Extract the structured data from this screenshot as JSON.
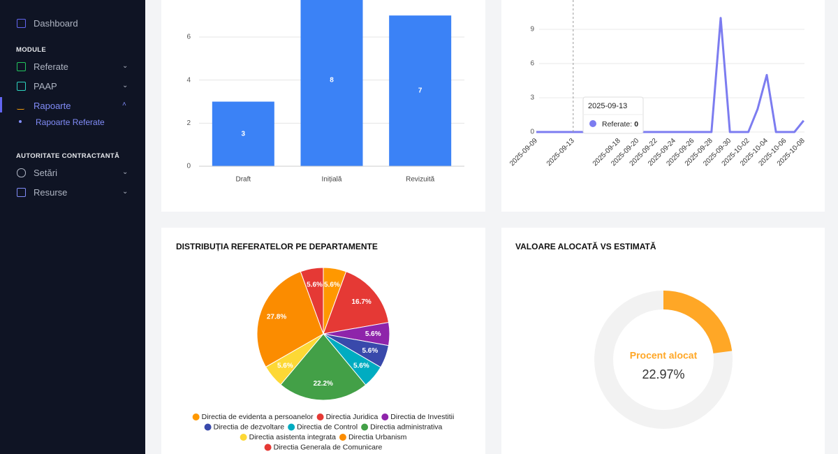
{
  "sidebar": {
    "dashboard": "Dashboard",
    "sections": [
      {
        "title": "MODULE",
        "items": [
          "Referate",
          "PAAP",
          "Rapoarte"
        ],
        "subitems": [
          "Rapoarte Referate"
        ]
      },
      {
        "title": "AUTORITATE CONTRACTANTĂ",
        "items": [
          "Setări",
          "Resurse"
        ]
      }
    ]
  },
  "chart_data": [
    {
      "type": "bar",
      "categories": [
        "Draft",
        "Inițială",
        "Revizuită"
      ],
      "values": [
        3,
        8,
        7
      ],
      "color": "#3b82f6",
      "ylim": [
        0,
        8
      ],
      "yticks": [
        0,
        2,
        4,
        6
      ],
      "grid": true
    },
    {
      "type": "line",
      "color": "#7c7cf0",
      "x": [
        "2025-09-09",
        "2025-09-10",
        "2025-09-11",
        "2025-09-12",
        "2025-09-13",
        "2025-09-14",
        "2025-09-15",
        "2025-09-16",
        "2025-09-17",
        "2025-09-18",
        "2025-09-19",
        "2025-09-20",
        "2025-09-21",
        "2025-09-22",
        "2025-09-23",
        "2025-09-24",
        "2025-09-25",
        "2025-09-26",
        "2025-09-27",
        "2025-09-28",
        "2025-09-29",
        "2025-09-30",
        "2025-10-01",
        "2025-10-02",
        "2025-10-03",
        "2025-10-04",
        "2025-10-05",
        "2025-10-06",
        "2025-10-07",
        "2025-10-08"
      ],
      "values": [
        0,
        0,
        0,
        0,
        0,
        0,
        0,
        0,
        0,
        0,
        0,
        0,
        0,
        0,
        0,
        0,
        0,
        0,
        0,
        0,
        10,
        0,
        0,
        0,
        2,
        5,
        0,
        0,
        0,
        1
      ],
      "ylim": [
        0,
        12
      ],
      "yticks": [
        0,
        3,
        6,
        9
      ],
      "xticks": [
        "2025-09-09",
        "2025-09-13",
        "2025-09-18",
        "2025-09-20",
        "2025-09-22",
        "2025-09-24",
        "2025-09-26",
        "2025-09-28",
        "2025-09-30",
        "2025-10-02",
        "2025-10-04",
        "2025-10-06",
        "2025-10-08"
      ],
      "grid": true,
      "tooltip": {
        "title": "2025-09-13",
        "label": "Referate:",
        "value": 0
      }
    },
    {
      "type": "pie",
      "title": "DISTRIBUȚIA REFERATELOR PE DEPARTAMENTE",
      "categories": [
        "Directia de evidenta a persoanelor",
        "Directia Juridica",
        "Directia de Investitii",
        "Directia de dezvoltare",
        "Directia de Control",
        "Directia administrativa",
        "Directia asistenta integrata",
        "Directia Urbanism",
        "Directia Generala de Comunicare"
      ],
      "values": [
        5.6,
        16.7,
        5.6,
        5.6,
        5.6,
        22.2,
        5.6,
        27.8,
        5.6
      ],
      "value_labels": [
        "5.6%",
        "16.7%",
        "5.6%",
        "5.6%",
        "5.6%",
        "22.2%",
        "5.6%",
        "27.8%",
        "5.6%"
      ],
      "colors": [
        "#ff9800",
        "#e53935",
        "#8e24aa",
        "#3949ab",
        "#00acc1",
        "#43a047",
        "#fdd835",
        "#fb8c00",
        "#e53935"
      ]
    },
    {
      "type": "donut",
      "title": "VALOARE ALOCATĂ VS ESTIMATĂ",
      "label": "Procent alocat",
      "values": [
        22.97
      ],
      "value_labels": [
        "22.97%"
      ],
      "color": "#ffa726",
      "track_color": "#f2f2f2"
    }
  ]
}
